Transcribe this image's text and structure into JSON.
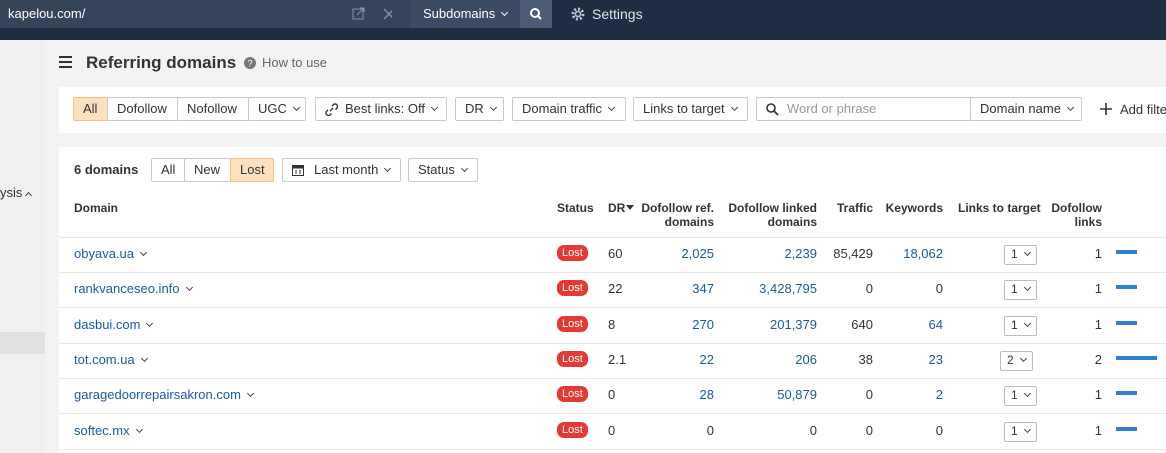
{
  "topbar": {
    "url": "kapelou.com/",
    "mode": "Subdomains",
    "settings": "Settings"
  },
  "sidebar": {
    "item": "ysis"
  },
  "header": {
    "title": "Referring domains",
    "help": "How to use"
  },
  "filters": {
    "type_tabs": [
      "All",
      "Dofollow",
      "Nofollow",
      "UGC"
    ],
    "best_links": "Best links: Off",
    "dr": "DR",
    "domain_traffic": "Domain traffic",
    "links_to_target": "Links to target",
    "search_placeholder": "Word or phrase",
    "search_scope": "Domain name",
    "add_filter": "Add filter"
  },
  "toolbar": {
    "count": "6 domains",
    "tabs": [
      "All",
      "New",
      "Lost"
    ],
    "period": "Last month",
    "status": "Status"
  },
  "table": {
    "columns": [
      "Domain",
      "Status",
      "DR",
      "Dofollow ref. domains",
      "Dofollow linked domains",
      "Traffic",
      "Keywords",
      "Links to target",
      "Dofollow links"
    ],
    "rows": [
      [
        "obyava.ua",
        "Lost",
        "60",
        "2,025",
        "2,239",
        "85,429",
        "18,062",
        "1",
        "1"
      ],
      [
        "rankvanceseo.info",
        "Lost",
        "22",
        "347",
        "3,428,795",
        "0",
        "0",
        "1",
        "1"
      ],
      [
        "dasbui.com",
        "Lost",
        "8",
        "270",
        "201,379",
        "640",
        "64",
        "1",
        "1"
      ],
      [
        "tot.com.ua",
        "Lost",
        "2.1",
        "22",
        "206",
        "38",
        "23",
        "2",
        "2"
      ],
      [
        "garagedoorrepairsakron.com",
        "Lost",
        "0",
        "28",
        "50,879",
        "0",
        "2",
        "1",
        "1"
      ],
      [
        "softec.mx",
        "Lost",
        "0",
        "0",
        "0",
        "0",
        "0",
        "1",
        "1"
      ]
    ]
  }
}
